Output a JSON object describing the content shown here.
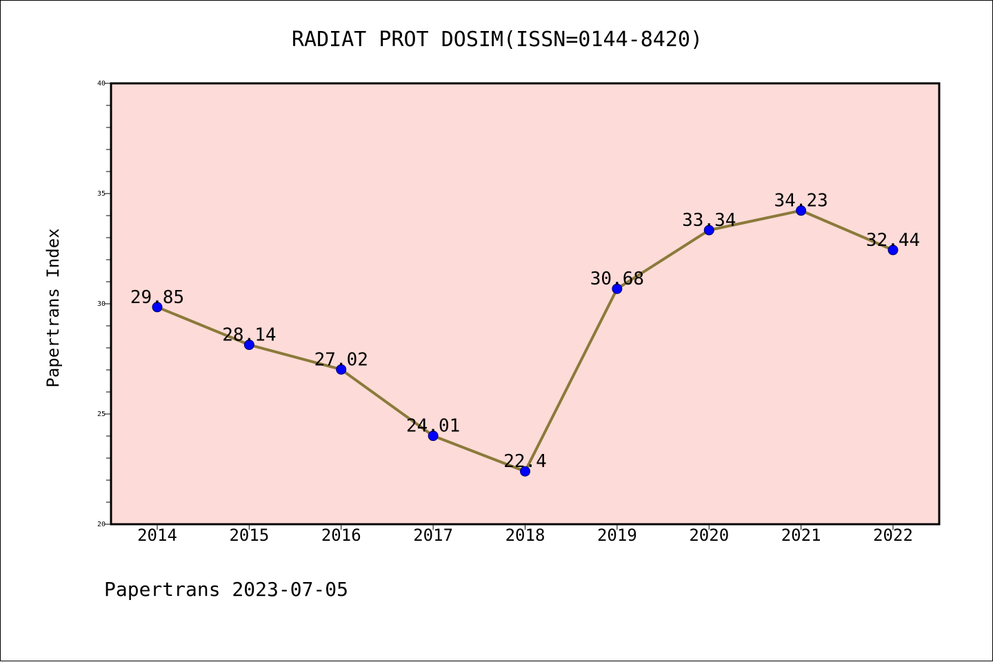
{
  "chart_data": {
    "type": "line",
    "title": "RADIAT PROT DOSIM(ISSN=0144-8420)",
    "xlabel": "",
    "ylabel": "Papertrans Index",
    "categories": [
      "2014",
      "2015",
      "2016",
      "2017",
      "2018",
      "2019",
      "2020",
      "2021",
      "2022"
    ],
    "series": [
      {
        "values": [
          29.85,
          28.14,
          27.02,
          24.01,
          22.4,
          30.68,
          33.34,
          34.23,
          32.44
        ],
        "labels": [
          "29.85",
          "28.14",
          "27.02",
          "24.01",
          "22.4",
          "30.68",
          "33.34",
          "34.23",
          "32.44"
        ],
        "line_color": "#8b7a3a",
        "marker_color": "#0000ff"
      }
    ],
    "ylim": [
      20,
      40
    ],
    "yticks": [
      "20",
      "25",
      "30",
      "35",
      "40"
    ],
    "plot_background": "#fddbd8",
    "grid": false,
    "legend": "none"
  },
  "footer": {
    "text": "Papertrans 2023-07-05"
  }
}
